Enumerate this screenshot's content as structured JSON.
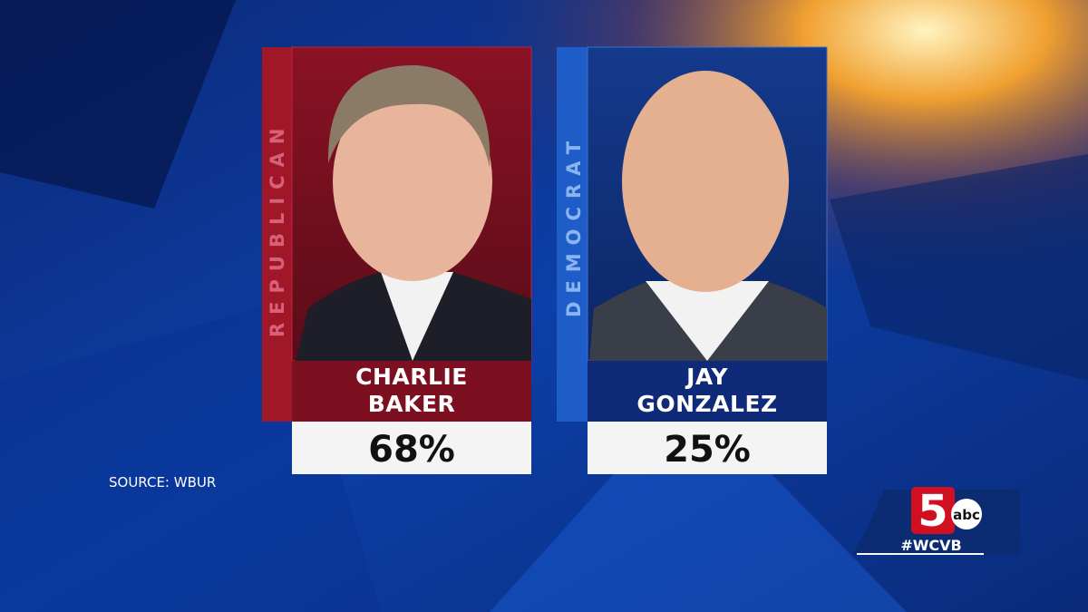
{
  "source": "SOURCE: WBUR",
  "candidates": [
    {
      "party": "REPUBLICAN",
      "name_lines": [
        "CHARLIE",
        "BAKER"
      ],
      "result": "68%"
    },
    {
      "party": "DEMOCRAT",
      "name_lines": [
        "JAY",
        "GONZALEZ"
      ],
      "result": "25%"
    }
  ],
  "logo": {
    "number": "5",
    "network": "abc",
    "hashtag": "#WCVB"
  }
}
